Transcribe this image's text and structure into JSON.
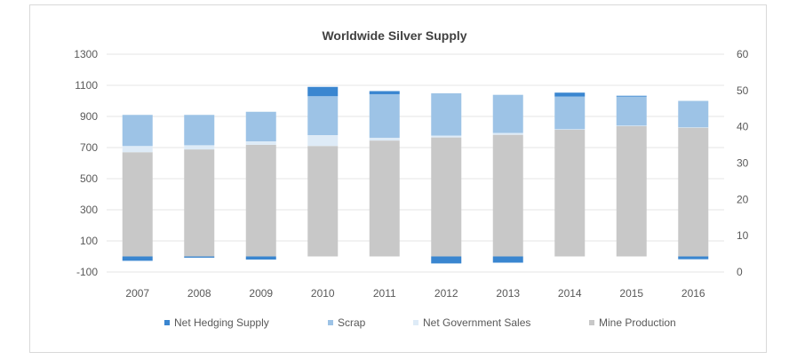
{
  "chart_data": {
    "type": "bar",
    "stacked": true,
    "title": "Worldwide Silver Supply",
    "categories": [
      "2007",
      "2008",
      "2009",
      "2010",
      "2011",
      "2012",
      "2013",
      "2014",
      "2015",
      "2016"
    ],
    "series": [
      {
        "name": "Mine Production",
        "color": "#c8c8c8",
        "values": [
          670,
          688,
          718,
          710,
          745,
          765,
          782,
          815,
          838,
          828
        ]
      },
      {
        "name": "Net Government Sales",
        "color": "#deebf7",
        "values": [
          40,
          27,
          22,
          70,
          18,
          12,
          12,
          3,
          3,
          2
        ]
      },
      {
        "name": "Scrap",
        "color": "#9dc3e6",
        "values": [
          200,
          195,
          190,
          250,
          280,
          272,
          245,
          210,
          187,
          170
        ]
      },
      {
        "name": "Net Hedging Supply",
        "color": "#3a86d0",
        "values": [
          -28,
          -8,
          -20,
          60,
          20,
          -45,
          -40,
          25,
          5,
          -18
        ]
      }
    ],
    "ylim": [
      -100,
      1300
    ],
    "yticks": [
      "-100",
      "100",
      "300",
      "500",
      "700",
      "900",
      "1100",
      "1300"
    ],
    "y2lim": [
      0,
      60
    ],
    "y2ticks": [
      "0",
      "10",
      "20",
      "30",
      "40",
      "50",
      "60"
    ],
    "legend": [
      "Net Hedging Supply",
      "Scrap",
      "Net Government Sales",
      "Mine Production"
    ],
    "legend_position": "bottom",
    "grid": true
  }
}
